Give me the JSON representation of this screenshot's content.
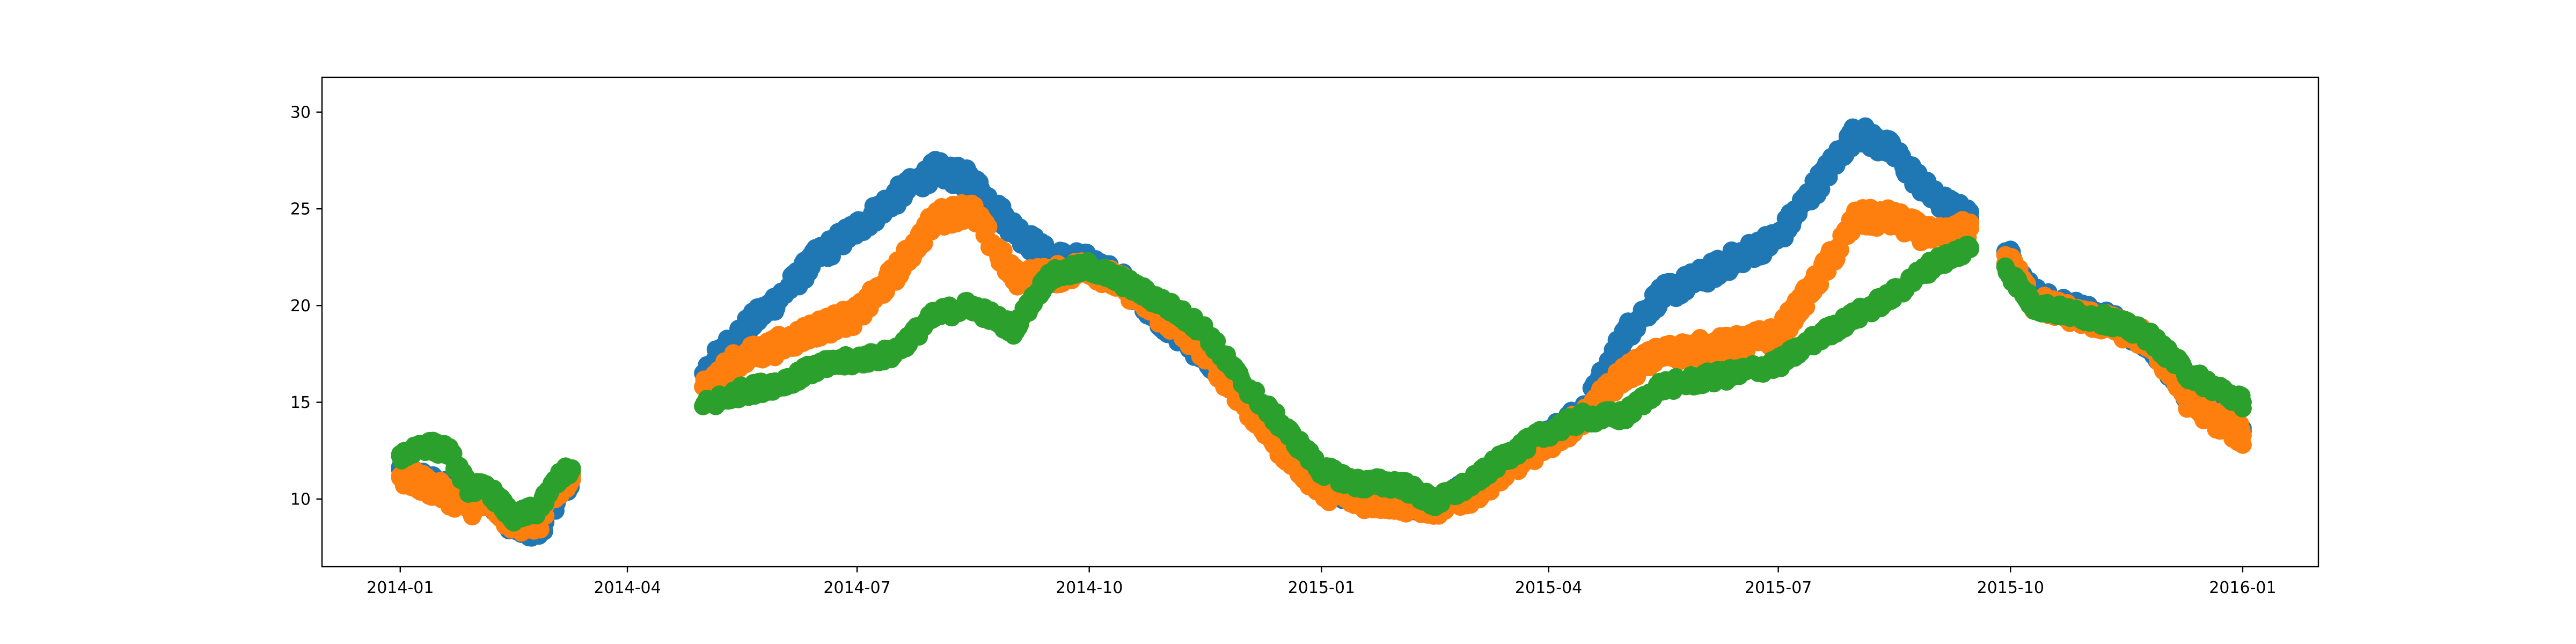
{
  "chart_data": {
    "type": "scatter",
    "title": "",
    "xlabel": "",
    "ylabel": "",
    "xlim": [
      "2013-12-01",
      "2016-01-31"
    ],
    "ylim": [
      6.5,
      31.8
    ],
    "x_ticks": [
      "2014-01",
      "2014-04",
      "2014-07",
      "2014-10",
      "2015-01",
      "2015-04",
      "2015-07",
      "2015-10",
      "2016-01"
    ],
    "y_ticks": [
      10,
      15,
      20,
      25,
      30
    ],
    "grid": false,
    "legend": "none",
    "gaps": [
      [
        "2014-03-10",
        "2014-05-01"
      ],
      [
        "2015-09-15",
        "2015-09-29"
      ]
    ],
    "series": [
      {
        "color": "#1f77b4",
        "x": [
          "2014-01-01",
          "2014-01-10",
          "2014-01-20",
          "2014-01-28",
          "2014-02-05",
          "2014-02-15",
          "2014-02-25",
          "2014-03-05",
          "2014-03-10",
          "2014-05-01",
          "2014-05-15",
          "2014-06-01",
          "2014-06-15",
          "2014-07-01",
          "2014-07-15",
          "2014-08-01",
          "2014-08-15",
          "2014-09-01",
          "2014-09-15",
          "2014-10-01",
          "2014-10-15",
          "2014-11-01",
          "2014-11-15",
          "2014-12-01",
          "2014-12-15",
          "2015-01-01",
          "2015-01-15",
          "2015-02-01",
          "2015-02-15",
          "2015-03-01",
          "2015-03-15",
          "2015-04-01",
          "2015-04-15",
          "2015-05-01",
          "2015-05-15",
          "2015-06-01",
          "2015-06-15",
          "2015-07-01",
          "2015-07-15",
          "2015-08-01",
          "2015-08-15",
          "2015-09-01",
          "2015-09-15",
          "2015-09-29",
          "2015-10-10",
          "2015-10-25",
          "2015-11-10",
          "2015-11-25",
          "2015-12-10",
          "2015-12-25",
          "2016-01-01"
        ],
        "y": [
          11.5,
          11.0,
          10.4,
          10.0,
          10.2,
          8.6,
          8.4,
          10.3,
          11.0,
          16.5,
          18.5,
          20.5,
          22.5,
          24.0,
          25.5,
          27.0,
          26.5,
          24.0,
          22.5,
          22.2,
          21.2,
          19.0,
          17.5,
          15.5,
          13.0,
          10.8,
          10.2,
          10.0,
          9.8,
          10.5,
          11.8,
          13.2,
          14.5,
          18.5,
          20.5,
          21.5,
          22.5,
          23.5,
          26.0,
          29.0,
          28.0,
          25.5,
          24.5,
          22.8,
          20.5,
          19.8,
          19.2,
          18.2,
          15.5,
          14.0,
          13.5
        ]
      },
      {
        "color": "#ff7f0e",
        "x": [
          "2014-01-01",
          "2014-01-10",
          "2014-01-20",
          "2014-01-28",
          "2014-02-05",
          "2014-02-15",
          "2014-02-25",
          "2014-03-05",
          "2014-03-10",
          "2014-05-01",
          "2014-05-15",
          "2014-06-01",
          "2014-06-15",
          "2014-07-01",
          "2014-07-15",
          "2014-08-01",
          "2014-08-15",
          "2014-09-01",
          "2014-09-15",
          "2014-10-01",
          "2014-10-15",
          "2014-11-01",
          "2014-11-15",
          "2014-12-01",
          "2014-12-15",
          "2015-01-01",
          "2015-01-15",
          "2015-02-01",
          "2015-02-15",
          "2015-03-01",
          "2015-03-15",
          "2015-04-01",
          "2015-04-15",
          "2015-05-01",
          "2015-05-15",
          "2015-06-01",
          "2015-06-15",
          "2015-07-01",
          "2015-07-15",
          "2015-08-01",
          "2015-08-15",
          "2015-09-01",
          "2015-09-15",
          "2015-09-29",
          "2015-10-10",
          "2015-10-25",
          "2015-11-10",
          "2015-11-25",
          "2015-12-10",
          "2015-12-25",
          "2016-01-01"
        ],
        "y": [
          11.2,
          10.8,
          10.2,
          9.6,
          9.8,
          8.8,
          8.8,
          10.4,
          11.0,
          15.8,
          17.2,
          18.0,
          18.8,
          19.5,
          21.5,
          24.5,
          25.0,
          21.5,
          21.5,
          22.0,
          21.0,
          19.2,
          17.8,
          15.0,
          12.8,
          10.5,
          10.0,
          9.8,
          9.6,
          10.2,
          11.5,
          13.0,
          14.2,
          16.5,
          17.5,
          17.8,
          18.0,
          18.5,
          21.0,
          24.5,
          24.5,
          23.5,
          24.0,
          22.6,
          20.2,
          19.6,
          19.0,
          18.2,
          15.2,
          13.8,
          13.3
        ]
      },
      {
        "color": "#2ca02c",
        "x": [
          "2014-01-01",
          "2014-01-10",
          "2014-01-20",
          "2014-01-28",
          "2014-02-05",
          "2014-02-15",
          "2014-02-25",
          "2014-03-05",
          "2014-03-10",
          "2014-05-01",
          "2014-05-15",
          "2014-06-01",
          "2014-06-15",
          "2014-07-01",
          "2014-07-15",
          "2014-08-01",
          "2014-08-15",
          "2014-09-01",
          "2014-09-15",
          "2014-10-01",
          "2014-10-15",
          "2014-11-01",
          "2014-11-15",
          "2014-12-01",
          "2014-12-15",
          "2015-01-01",
          "2015-01-15",
          "2015-02-01",
          "2015-02-15",
          "2015-03-01",
          "2015-03-15",
          "2015-04-01",
          "2015-04-15",
          "2015-05-01",
          "2015-05-15",
          "2015-06-01",
          "2015-06-15",
          "2015-07-01",
          "2015-07-15",
          "2015-08-01",
          "2015-08-15",
          "2015-09-01",
          "2015-09-15",
          "2015-09-29",
          "2015-10-10",
          "2015-10-25",
          "2015-11-10",
          "2015-11-25",
          "2015-12-10",
          "2015-12-25",
          "2016-01-01"
        ],
        "y": [
          12.2,
          12.8,
          12.5,
          10.6,
          10.5,
          9.0,
          9.5,
          11.2,
          11.5,
          14.8,
          15.5,
          16.0,
          16.8,
          17.2,
          17.5,
          19.5,
          20.0,
          18.8,
          21.5,
          22.0,
          21.2,
          20.0,
          18.8,
          16.0,
          14.0,
          11.5,
          10.8,
          10.8,
          9.8,
          10.8,
          12.2,
          13.5,
          14.2,
          14.3,
          15.8,
          16.2,
          16.5,
          17.0,
          18.2,
          19.5,
          20.5,
          22.2,
          23.0,
          22.0,
          20.0,
          19.6,
          19.2,
          18.4,
          16.5,
          15.5,
          15.0
        ]
      }
    ]
  }
}
